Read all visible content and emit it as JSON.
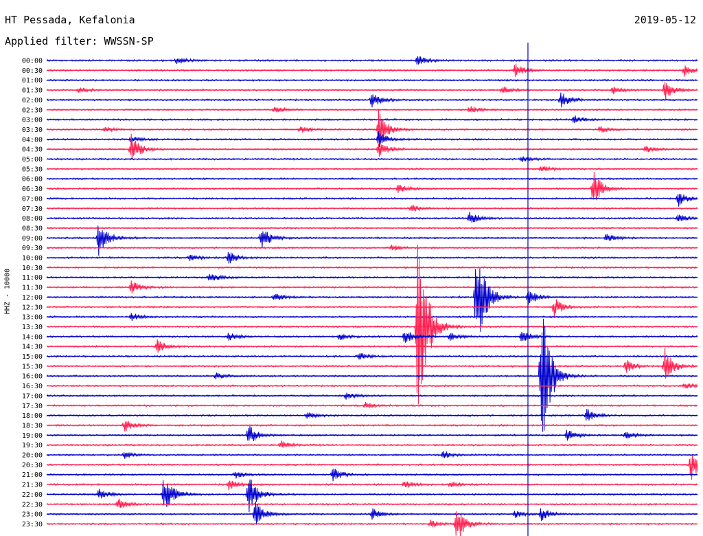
{
  "header": {
    "station": "HT Pessada, Kefalonia",
    "date": "2019-05-12",
    "filter": "Applied filter: WWSSN-SP",
    "channel": "HHZ - 10000"
  },
  "colors": {
    "even_rows": "#0000cc",
    "odd_rows": "#ff1f4f"
  },
  "chart_data": {
    "type": "helicorder",
    "title": "HT Pessada, Kefalonia",
    "date": "2019-05-12",
    "filter": "WWSSN-SP",
    "ylabel": "HHZ - 10000",
    "row_duration_minutes": 30,
    "row_labels": [
      "00:00",
      "00:30",
      "01:00",
      "01:30",
      "02:00",
      "02:30",
      "03:00",
      "03:30",
      "04:00",
      "04:30",
      "05:00",
      "05:30",
      "06:00",
      "06:30",
      "07:00",
      "07:30",
      "08:00",
      "08:30",
      "09:00",
      "09:30",
      "10:00",
      "10:30",
      "11:00",
      "11:30",
      "12:00",
      "12:30",
      "13:00",
      "13:30",
      "14:00",
      "14:30",
      "15:00",
      "15:30",
      "16:00",
      "16:30",
      "17:00",
      "17:30",
      "18:00",
      "18:30",
      "19:00",
      "19:30",
      "20:00",
      "20:30",
      "21:00",
      "21:30",
      "22:00",
      "22:30",
      "23:00",
      "23:30"
    ],
    "events": [
      {
        "row": 0,
        "t": 0.2,
        "amp": 6
      },
      {
        "row": 0,
        "t": 0.57,
        "amp": 8
      },
      {
        "row": 1,
        "t": 0.72,
        "amp": 10
      },
      {
        "row": 1,
        "t": 0.98,
        "amp": 8
      },
      {
        "row": 3,
        "t": 0.05,
        "amp": 4
      },
      {
        "row": 3,
        "t": 0.7,
        "amp": 6
      },
      {
        "row": 3,
        "t": 0.87,
        "amp": 6
      },
      {
        "row": 3,
        "t": 0.95,
        "amp": 16
      },
      {
        "row": 4,
        "t": 0.5,
        "amp": 12
      },
      {
        "row": 4,
        "t": 0.79,
        "amp": 12
      },
      {
        "row": 5,
        "t": 0.35,
        "amp": 5
      },
      {
        "row": 5,
        "t": 0.65,
        "amp": 6
      },
      {
        "row": 6,
        "t": 0.81,
        "amp": 6
      },
      {
        "row": 7,
        "t": 0.09,
        "amp": 4
      },
      {
        "row": 7,
        "t": 0.39,
        "amp": 5
      },
      {
        "row": 7,
        "t": 0.51,
        "amp": 28
      },
      {
        "row": 7,
        "t": 0.85,
        "amp": 5
      },
      {
        "row": 8,
        "t": 0.51,
        "amp": 12
      },
      {
        "row": 8,
        "t": 0.13,
        "amp": 6
      },
      {
        "row": 9,
        "t": 0.13,
        "amp": 22
      },
      {
        "row": 9,
        "t": 0.51,
        "amp": 12
      },
      {
        "row": 9,
        "t": 0.92,
        "amp": 5
      },
      {
        "row": 10,
        "t": 0.73,
        "amp": 5
      },
      {
        "row": 11,
        "t": 0.76,
        "amp": 5
      },
      {
        "row": 13,
        "t": 0.54,
        "amp": 6
      },
      {
        "row": 13,
        "t": 0.84,
        "amp": 26
      },
      {
        "row": 14,
        "t": 0.97,
        "amp": 12
      },
      {
        "row": 15,
        "t": 0.56,
        "amp": 6
      },
      {
        "row": 16,
        "t": 0.65,
        "amp": 10
      },
      {
        "row": 16,
        "t": 0.97,
        "amp": 6
      },
      {
        "row": 18,
        "t": 0.08,
        "amp": 28
      },
      {
        "row": 18,
        "t": 0.33,
        "amp": 18
      },
      {
        "row": 18,
        "t": 0.86,
        "amp": 6
      },
      {
        "row": 19,
        "t": 0.53,
        "amp": 5
      },
      {
        "row": 20,
        "t": 0.28,
        "amp": 10
      },
      {
        "row": 20,
        "t": 0.22,
        "amp": 5
      },
      {
        "row": 22,
        "t": 0.25,
        "amp": 8
      },
      {
        "row": 23,
        "t": 0.13,
        "amp": 10
      },
      {
        "row": 24,
        "t": 0.35,
        "amp": 6
      },
      {
        "row": 24,
        "t": 0.66,
        "amp": 90
      },
      {
        "row": 24,
        "t": 0.74,
        "amp": 14
      },
      {
        "row": 25,
        "t": 0.78,
        "amp": 14
      },
      {
        "row": 26,
        "t": 0.13,
        "amp": 6
      },
      {
        "row": 27,
        "t": 0.57,
        "amp": 180
      },
      {
        "row": 28,
        "t": 0.28,
        "amp": 6
      },
      {
        "row": 28,
        "t": 0.45,
        "amp": 5
      },
      {
        "row": 28,
        "t": 0.55,
        "amp": 12
      },
      {
        "row": 28,
        "t": 0.62,
        "amp": 6
      },
      {
        "row": 28,
        "t": 0.73,
        "amp": 10
      },
      {
        "row": 29,
        "t": 0.17,
        "amp": 10
      },
      {
        "row": 30,
        "t": 0.48,
        "amp": 5
      },
      {
        "row": 31,
        "t": 0.89,
        "amp": 10
      },
      {
        "row": 31,
        "t": 0.95,
        "amp": 26
      },
      {
        "row": 32,
        "t": 0.26,
        "amp": 5
      },
      {
        "row": 32,
        "t": 0.76,
        "amp": 120
      },
      {
        "row": 33,
        "t": 0.98,
        "amp": 5
      },
      {
        "row": 34,
        "t": 0.46,
        "amp": 5
      },
      {
        "row": 35,
        "t": 0.49,
        "amp": 5
      },
      {
        "row": 36,
        "t": 0.4,
        "amp": 5
      },
      {
        "row": 36,
        "t": 0.83,
        "amp": 10
      },
      {
        "row": 37,
        "t": 0.12,
        "amp": 10
      },
      {
        "row": 38,
        "t": 0.31,
        "amp": 16
      },
      {
        "row": 38,
        "t": 0.8,
        "amp": 10
      },
      {
        "row": 38,
        "t": 0.89,
        "amp": 6
      },
      {
        "row": 39,
        "t": 0.36,
        "amp": 6
      },
      {
        "row": 40,
        "t": 0.61,
        "amp": 6
      },
      {
        "row": 40,
        "t": 0.12,
        "amp": 5
      },
      {
        "row": 41,
        "t": 0.99,
        "amp": 24
      },
      {
        "row": 42,
        "t": 0.44,
        "amp": 10
      },
      {
        "row": 42,
        "t": 0.29,
        "amp": 5
      },
      {
        "row": 43,
        "t": 0.28,
        "amp": 8
      },
      {
        "row": 43,
        "t": 0.55,
        "amp": 6
      },
      {
        "row": 43,
        "t": 0.62,
        "amp": 5
      },
      {
        "row": 44,
        "t": 0.08,
        "amp": 8
      },
      {
        "row": 44,
        "t": 0.18,
        "amp": 30
      },
      {
        "row": 44,
        "t": 0.31,
        "amp": 30
      },
      {
        "row": 45,
        "t": 0.11,
        "amp": 8
      },
      {
        "row": 46,
        "t": 0.32,
        "amp": 20
      },
      {
        "row": 46,
        "t": 0.5,
        "amp": 8
      },
      {
        "row": 46,
        "t": 0.72,
        "amp": 5
      },
      {
        "row": 46,
        "t": 0.76,
        "amp": 10
      },
      {
        "row": 47,
        "t": 0.63,
        "amp": 28
      },
      {
        "row": 47,
        "t": 0.59,
        "amp": 5
      }
    ]
  }
}
